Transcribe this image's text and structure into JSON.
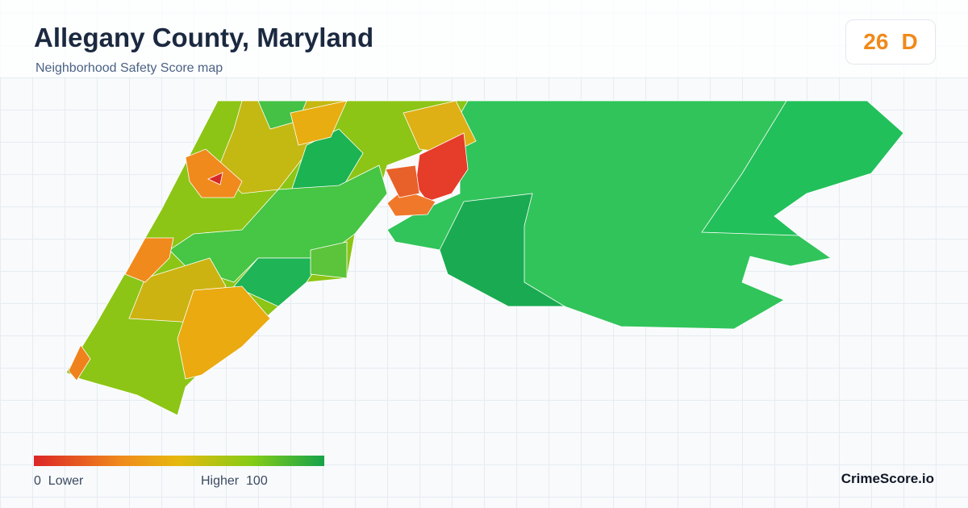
{
  "header": {
    "title": "Allegany County, Maryland",
    "subtitle": "Neighborhood Safety Score map"
  },
  "score": {
    "value": 26,
    "grade": "D"
  },
  "legend": {
    "min": 0,
    "min_label": "Lower",
    "max_label": "Higher",
    "max": 100
  },
  "brand": "CrimeScore.io"
}
